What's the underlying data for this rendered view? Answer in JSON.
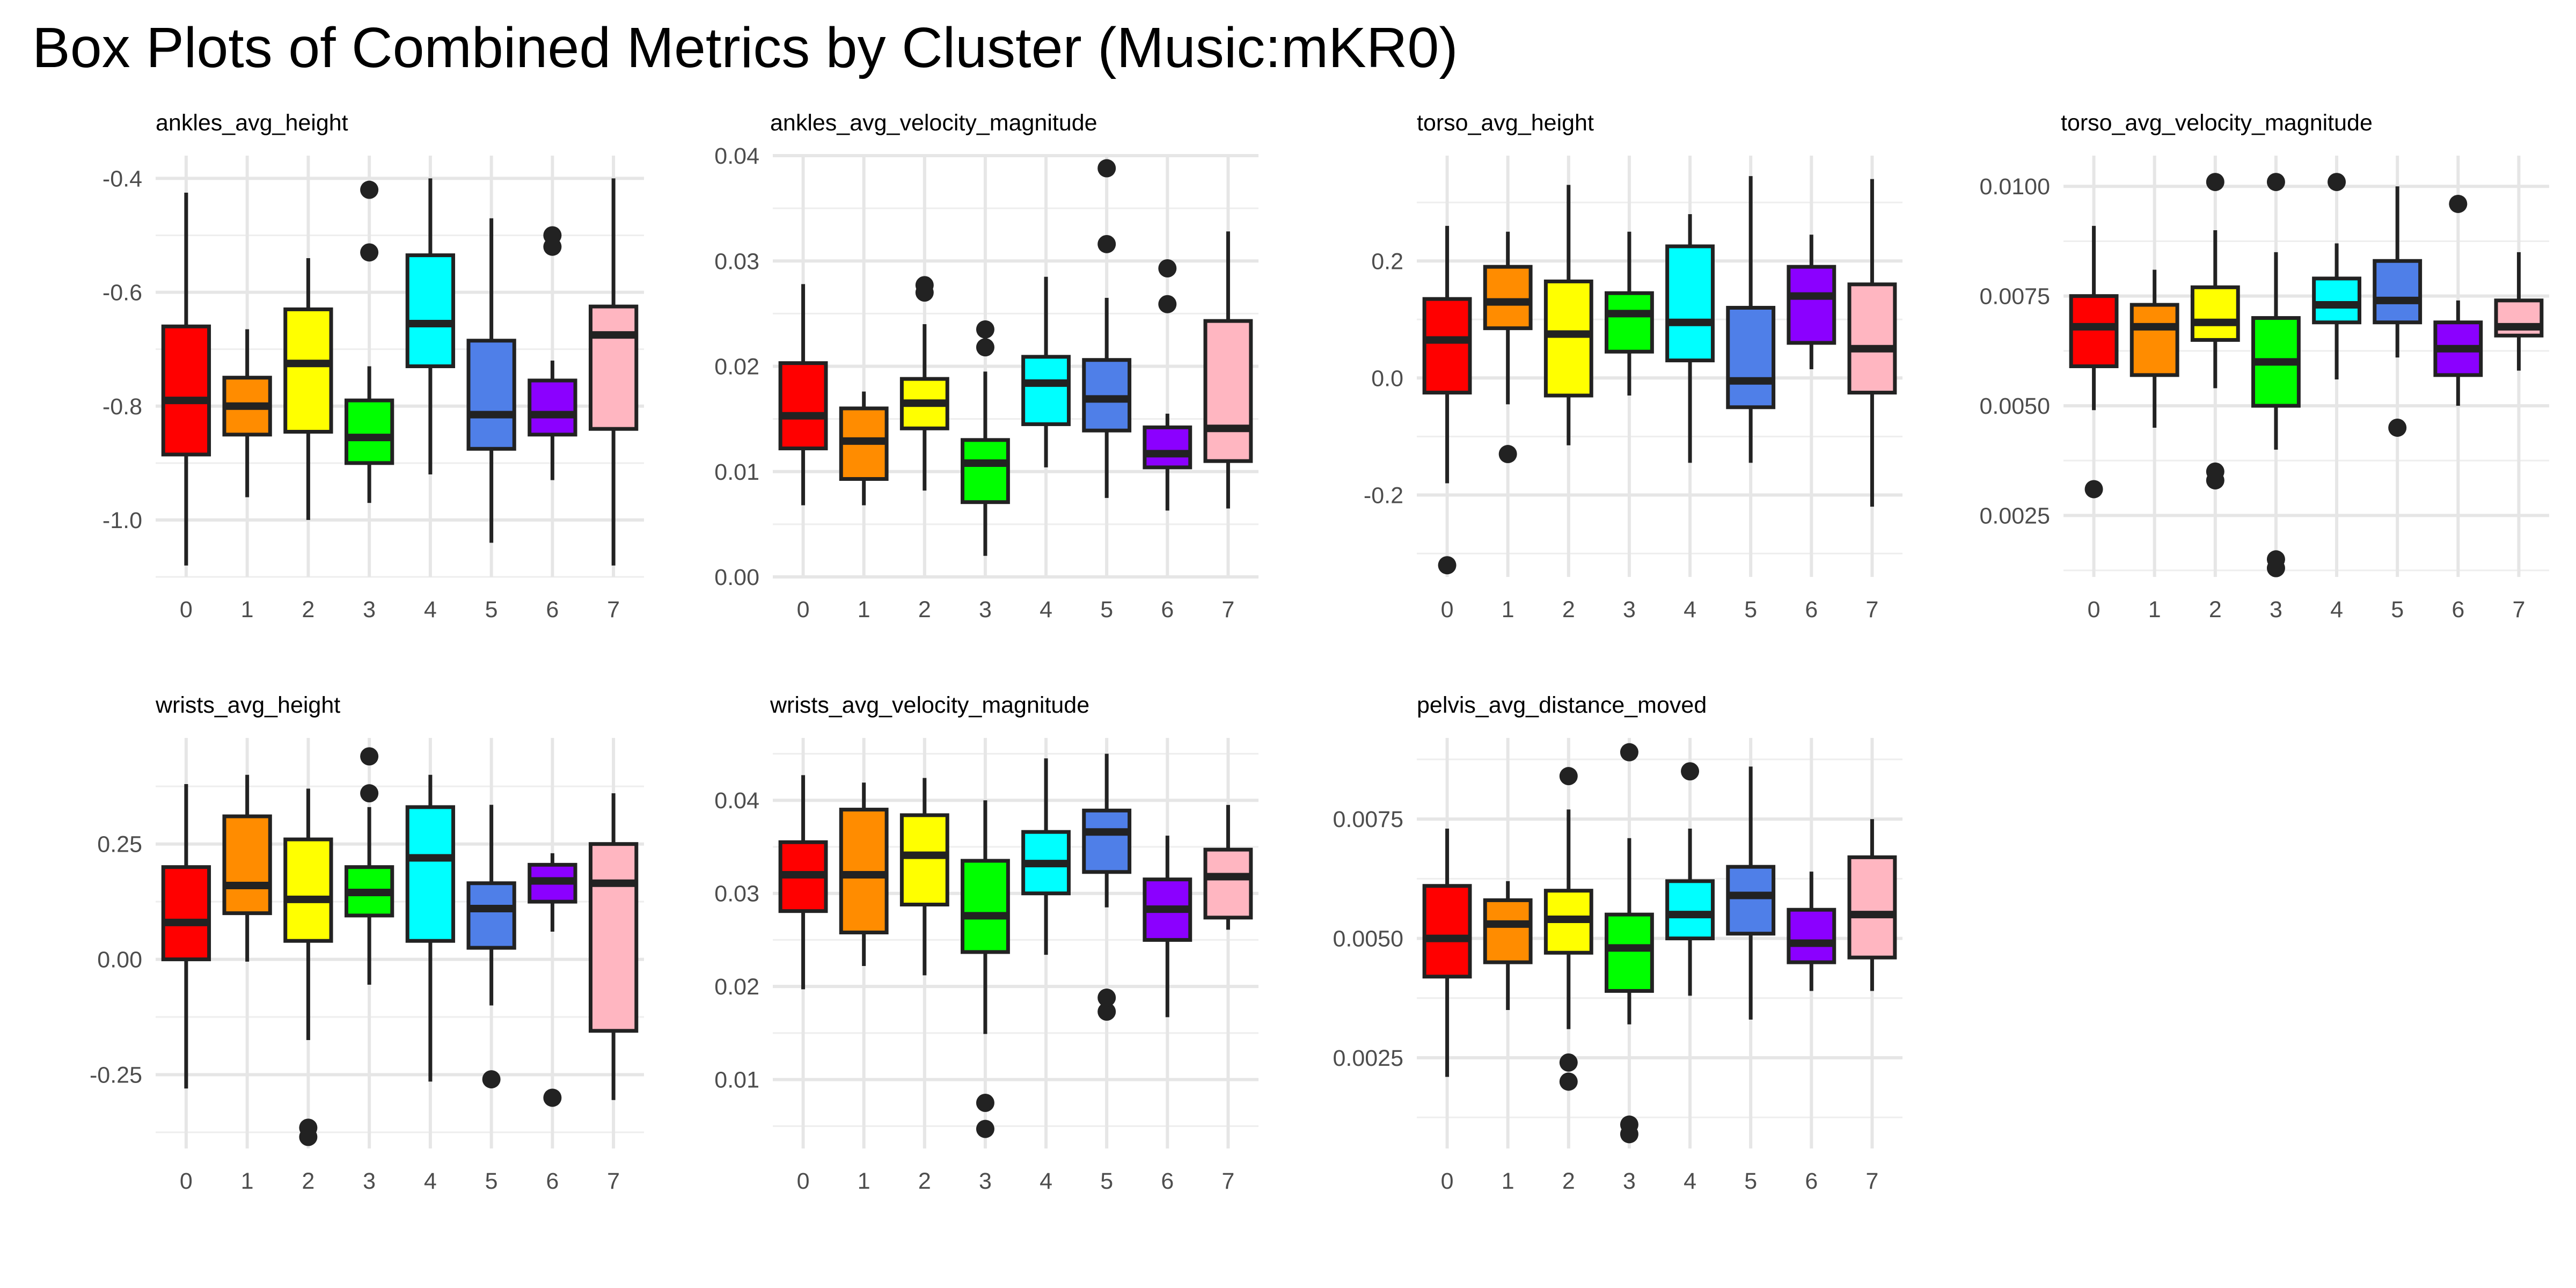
{
  "title": "Box Plots of Combined Metrics by Cluster (Music:mKR0)",
  "chart_data": {
    "type": "boxplot",
    "title": "Box Plots of Combined Metrics by Cluster (Music:mKR0)",
    "categories": [
      "0",
      "1",
      "2",
      "3",
      "4",
      "5",
      "6",
      "7"
    ],
    "colors": [
      "#ff0000",
      "#ff8c00",
      "#ffff00",
      "#00ff00",
      "#00ffff",
      "#4f7fe8",
      "#8b00ff",
      "#ffb6c1"
    ],
    "panels": [
      {
        "name": "ankles_avg_height",
        "ylim": [
          -1.1,
          -0.36
        ],
        "yticks": [
          -1.0,
          -0.8,
          -0.6,
          -0.4
        ],
        "ytick_labels": [
          "-1.0",
          "-0.8",
          "-0.6",
          "-0.4"
        ],
        "boxes": [
          {
            "cluster": "0",
            "min": -1.08,
            "q1": -0.885,
            "median": -0.79,
            "q3": -0.66,
            "max": -0.425,
            "outliers": []
          },
          {
            "cluster": "1",
            "min": -0.96,
            "q1": -0.85,
            "median": -0.8,
            "q3": -0.75,
            "max": -0.665,
            "outliers": []
          },
          {
            "cluster": "2",
            "min": -1.0,
            "q1": -0.845,
            "median": -0.725,
            "q3": -0.63,
            "max": -0.54,
            "outliers": []
          },
          {
            "cluster": "3",
            "min": -0.97,
            "q1": -0.9,
            "median": -0.855,
            "q3": -0.79,
            "max": -0.73,
            "outliers": [
              -0.53,
              -0.42
            ]
          },
          {
            "cluster": "4",
            "min": -0.92,
            "q1": -0.73,
            "median": -0.655,
            "q3": -0.535,
            "max": -0.4,
            "outliers": []
          },
          {
            "cluster": "5",
            "min": -1.04,
            "q1": -0.875,
            "median": -0.815,
            "q3": -0.685,
            "max": -0.47,
            "outliers": []
          },
          {
            "cluster": "6",
            "min": -0.93,
            "q1": -0.85,
            "median": -0.815,
            "q3": -0.755,
            "max": -0.72,
            "outliers": [
              -0.52,
              -0.5
            ]
          },
          {
            "cluster": "7",
            "min": -1.08,
            "q1": -0.84,
            "median": -0.675,
            "q3": -0.625,
            "max": -0.4,
            "outliers": []
          }
        ]
      },
      {
        "name": "ankles_avg_velocity_magnitude",
        "ylim": [
          0.0,
          0.04
        ],
        "yticks": [
          0.0,
          0.01,
          0.02,
          0.03,
          0.04
        ],
        "ytick_labels": [
          "0.00",
          "0.01",
          "0.02",
          "0.03",
          "0.04"
        ],
        "boxes": [
          {
            "cluster": "0",
            "min": 0.0068,
            "q1": 0.0122,
            "median": 0.0153,
            "q3": 0.0203,
            "max": 0.0278,
            "outliers": []
          },
          {
            "cluster": "1",
            "min": 0.0068,
            "q1": 0.0093,
            "median": 0.0129,
            "q3": 0.016,
            "max": 0.0176,
            "outliers": []
          },
          {
            "cluster": "2",
            "min": 0.0082,
            "q1": 0.0141,
            "median": 0.0165,
            "q3": 0.0188,
            "max": 0.024,
            "outliers": [
              0.027,
              0.0277
            ]
          },
          {
            "cluster": "3",
            "min": 0.002,
            "q1": 0.0071,
            "median": 0.0108,
            "q3": 0.013,
            "max": 0.0195,
            "outliers": [
              0.0218,
              0.0235
            ]
          },
          {
            "cluster": "4",
            "min": 0.0104,
            "q1": 0.0145,
            "median": 0.0184,
            "q3": 0.0209,
            "max": 0.0285,
            "outliers": []
          },
          {
            "cluster": "5",
            "min": 0.0075,
            "q1": 0.0139,
            "median": 0.0169,
            "q3": 0.0206,
            "max": 0.0265,
            "outliers": [
              0.0316,
              0.0388
            ]
          },
          {
            "cluster": "6",
            "min": 0.0063,
            "q1": 0.0104,
            "median": 0.0117,
            "q3": 0.0142,
            "max": 0.0155,
            "outliers": [
              0.0259,
              0.0293
            ]
          },
          {
            "cluster": "7",
            "min": 0.0065,
            "q1": 0.011,
            "median": 0.0141,
            "q3": 0.0243,
            "max": 0.0328,
            "outliers": []
          }
        ]
      },
      {
        "name": "torso_avg_height",
        "ylim": [
          -0.34,
          0.38
        ],
        "yticks": [
          -0.2,
          0.0,
          0.2
        ],
        "ytick_labels": [
          "-0.2",
          "0.0",
          "0.2"
        ],
        "boxes": [
          {
            "cluster": "0",
            "min": -0.18,
            "q1": -0.025,
            "median": 0.065,
            "q3": 0.135,
            "max": 0.26,
            "outliers": [
              -0.32
            ]
          },
          {
            "cluster": "1",
            "min": -0.045,
            "q1": 0.085,
            "median": 0.13,
            "q3": 0.19,
            "max": 0.25,
            "outliers": [
              -0.13
            ]
          },
          {
            "cluster": "2",
            "min": -0.115,
            "q1": -0.03,
            "median": 0.075,
            "q3": 0.165,
            "max": 0.33,
            "outliers": []
          },
          {
            "cluster": "3",
            "min": -0.03,
            "q1": 0.045,
            "median": 0.11,
            "q3": 0.145,
            "max": 0.25,
            "outliers": []
          },
          {
            "cluster": "4",
            "min": -0.145,
            "q1": 0.03,
            "median": 0.095,
            "q3": 0.225,
            "max": 0.28,
            "outliers": []
          },
          {
            "cluster": "5",
            "min": -0.145,
            "q1": -0.05,
            "median": -0.005,
            "q3": 0.12,
            "max": 0.345,
            "outliers": []
          },
          {
            "cluster": "6",
            "min": 0.015,
            "q1": 0.06,
            "median": 0.14,
            "q3": 0.19,
            "max": 0.245,
            "outliers": []
          },
          {
            "cluster": "7",
            "min": -0.22,
            "q1": -0.025,
            "median": 0.05,
            "q3": 0.16,
            "max": 0.34,
            "outliers": []
          }
        ]
      },
      {
        "name": "torso_avg_velocity_magnitude",
        "ylim": [
          0.0011,
          0.0107
        ],
        "yticks": [
          0.0025,
          0.005,
          0.0075,
          0.01
        ],
        "ytick_labels": [
          "0.0025",
          "0.0050",
          "0.0075",
          "0.0100"
        ],
        "boxes": [
          {
            "cluster": "0",
            "min": 0.0049,
            "q1": 0.0059,
            "median": 0.0068,
            "q3": 0.0075,
            "max": 0.0091,
            "outliers": [
              0.0031
            ]
          },
          {
            "cluster": "1",
            "min": 0.0045,
            "q1": 0.0057,
            "median": 0.0068,
            "q3": 0.0073,
            "max": 0.0081,
            "outliers": []
          },
          {
            "cluster": "2",
            "min": 0.0054,
            "q1": 0.0065,
            "median": 0.0069,
            "q3": 0.0077,
            "max": 0.009,
            "outliers": [
              0.0033,
              0.0035,
              0.0101
            ]
          },
          {
            "cluster": "3",
            "min": 0.004,
            "q1": 0.005,
            "median": 0.006,
            "q3": 0.007,
            "max": 0.0085,
            "outliers": [
              0.0013,
              0.0015,
              0.0101
            ]
          },
          {
            "cluster": "4",
            "min": 0.0056,
            "q1": 0.0069,
            "median": 0.0073,
            "q3": 0.0079,
            "max": 0.0087,
            "outliers": [
              0.0101
            ]
          },
          {
            "cluster": "5",
            "min": 0.0061,
            "q1": 0.0069,
            "median": 0.0074,
            "q3": 0.0083,
            "max": 0.01,
            "outliers": [
              0.0045
            ]
          },
          {
            "cluster": "6",
            "min": 0.005,
            "q1": 0.0057,
            "median": 0.0063,
            "q3": 0.0069,
            "max": 0.0074,
            "outliers": [
              0.0096
            ]
          },
          {
            "cluster": "7",
            "min": 0.0058,
            "q1": 0.0066,
            "median": 0.0068,
            "q3": 0.0074,
            "max": 0.0085,
            "outliers": []
          }
        ]
      },
      {
        "name": "wrists_avg_height",
        "ylim": [
          -0.41,
          0.48
        ],
        "yticks": [
          -0.25,
          0.0,
          0.25
        ],
        "ytick_labels": [
          "-0.25",
          "0.00",
          "0.25"
        ],
        "boxes": [
          {
            "cluster": "0",
            "min": -0.28,
            "q1": 0.0,
            "median": 0.08,
            "q3": 0.2,
            "max": 0.38,
            "outliers": []
          },
          {
            "cluster": "1",
            "min": -0.005,
            "q1": 0.1,
            "median": 0.16,
            "q3": 0.31,
            "max": 0.4,
            "outliers": []
          },
          {
            "cluster": "2",
            "min": -0.175,
            "q1": 0.04,
            "median": 0.13,
            "q3": 0.26,
            "max": 0.37,
            "outliers": [
              -0.385,
              -0.365
            ]
          },
          {
            "cluster": "3",
            "min": -0.055,
            "q1": 0.095,
            "median": 0.145,
            "q3": 0.2,
            "max": 0.33,
            "outliers": [
              0.36,
              0.44
            ]
          },
          {
            "cluster": "4",
            "min": -0.265,
            "q1": 0.04,
            "median": 0.22,
            "q3": 0.33,
            "max": 0.4,
            "outliers": []
          },
          {
            "cluster": "5",
            "min": -0.1,
            "q1": 0.025,
            "median": 0.11,
            "q3": 0.165,
            "max": 0.335,
            "outliers": [
              -0.26
            ]
          },
          {
            "cluster": "6",
            "min": 0.06,
            "q1": 0.125,
            "median": 0.17,
            "q3": 0.205,
            "max": 0.23,
            "outliers": [
              -0.3
            ]
          },
          {
            "cluster": "7",
            "min": -0.305,
            "q1": -0.155,
            "median": 0.165,
            "q3": 0.25,
            "max": 0.36,
            "outliers": []
          }
        ]
      },
      {
        "name": "wrists_avg_velocity_magnitude",
        "ylim": [
          0.0026,
          0.0467
        ],
        "yticks": [
          0.01,
          0.02,
          0.03,
          0.04
        ],
        "ytick_labels": [
          "0.01",
          "0.02",
          "0.03",
          "0.04"
        ],
        "boxes": [
          {
            "cluster": "0",
            "min": 0.0197,
            "q1": 0.0281,
            "median": 0.032,
            "q3": 0.0355,
            "max": 0.0427,
            "outliers": []
          },
          {
            "cluster": "1",
            "min": 0.0222,
            "q1": 0.0258,
            "median": 0.032,
            "q3": 0.039,
            "max": 0.0419,
            "outliers": []
          },
          {
            "cluster": "2",
            "min": 0.0212,
            "q1": 0.0288,
            "median": 0.0341,
            "q3": 0.0384,
            "max": 0.0424,
            "outliers": []
          },
          {
            "cluster": "3",
            "min": 0.0149,
            "q1": 0.0237,
            "median": 0.0276,
            "q3": 0.0335,
            "max": 0.04,
            "outliers": [
              0.0047,
              0.0075
            ]
          },
          {
            "cluster": "4",
            "min": 0.0234,
            "q1": 0.03,
            "median": 0.0332,
            "q3": 0.0366,
            "max": 0.0445,
            "outliers": []
          },
          {
            "cluster": "5",
            "min": 0.0285,
            "q1": 0.0323,
            "median": 0.0366,
            "q3": 0.0389,
            "max": 0.045,
            "outliers": [
              0.0173,
              0.0188
            ]
          },
          {
            "cluster": "6",
            "min": 0.0167,
            "q1": 0.025,
            "median": 0.0283,
            "q3": 0.0315,
            "max": 0.0362,
            "outliers": []
          },
          {
            "cluster": "7",
            "min": 0.0261,
            "q1": 0.0274,
            "median": 0.0318,
            "q3": 0.0347,
            "max": 0.0395,
            "outliers": []
          }
        ]
      },
      {
        "name": "pelvis_avg_distance_moved",
        "ylim": [
          0.0006,
          0.0092
        ],
        "yticks": [
          0.0025,
          0.005,
          0.0075
        ],
        "ytick_labels": [
          "0.0025",
          "0.0050",
          "0.0075"
        ],
        "boxes": [
          {
            "cluster": "0",
            "min": 0.0021,
            "q1": 0.0042,
            "median": 0.005,
            "q3": 0.0061,
            "max": 0.0073,
            "outliers": []
          },
          {
            "cluster": "1",
            "min": 0.0035,
            "q1": 0.0045,
            "median": 0.0053,
            "q3": 0.0058,
            "max": 0.0062,
            "outliers": []
          },
          {
            "cluster": "2",
            "min": 0.0031,
            "q1": 0.0047,
            "median": 0.0054,
            "q3": 0.006,
            "max": 0.0077,
            "outliers": [
              0.002,
              0.0024,
              0.0084
            ]
          },
          {
            "cluster": "3",
            "min": 0.0032,
            "q1": 0.0039,
            "median": 0.0048,
            "q3": 0.0055,
            "max": 0.0071,
            "outliers": [
              0.0009,
              0.0011,
              0.0089
            ]
          },
          {
            "cluster": "4",
            "min": 0.0038,
            "q1": 0.005,
            "median": 0.0055,
            "q3": 0.0062,
            "max": 0.0073,
            "outliers": [
              0.0085
            ]
          },
          {
            "cluster": "5",
            "min": 0.0033,
            "q1": 0.0051,
            "median": 0.0059,
            "q3": 0.0065,
            "max": 0.0086,
            "outliers": []
          },
          {
            "cluster": "6",
            "min": 0.0039,
            "q1": 0.0045,
            "median": 0.0049,
            "q3": 0.0056,
            "max": 0.0064,
            "outliers": []
          },
          {
            "cluster": "7",
            "min": 0.0039,
            "q1": 0.0046,
            "median": 0.0055,
            "q3": 0.0067,
            "max": 0.0075,
            "outliers": []
          }
        ]
      }
    ]
  }
}
